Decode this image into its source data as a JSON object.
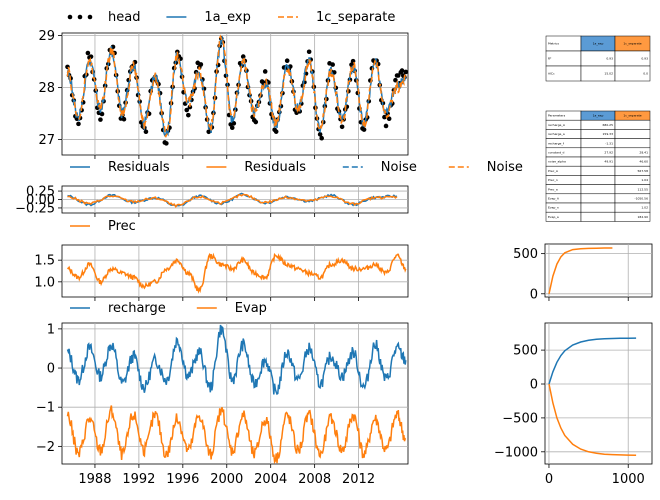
{
  "chart_data": [
    {
      "type": "line",
      "panel": "head",
      "ylim": [
        26.7,
        29.05
      ],
      "yticks": [
        "27",
        "28",
        "29"
      ],
      "xlim": [
        1985.0,
        2016.5
      ],
      "grid": true,
      "legend_position": "top",
      "series": [
        {
          "name": "head",
          "style": "dots",
          "color": "#000000",
          "x": [
            1985.5,
            1986.5,
            1987.5,
            1988.5,
            1989.5,
            1990.5,
            1991.5,
            1992.5,
            1993.5,
            1994.5,
            1995.5,
            1996.5,
            1997.5,
            1998.5,
            1999.5,
            2000.5,
            2001.5,
            2002.5,
            2003.5,
            2004.5,
            2005.5,
            2006.5,
            2007.5,
            2008.5,
            2009.5,
            2010.5,
            2011.5,
            2012.5,
            2013.5,
            2014.5,
            2015.5,
            2016.3
          ],
          "values": [
            28.4,
            27.3,
            28.6,
            27.5,
            28.8,
            27.4,
            28.5,
            27.2,
            28.3,
            27.0,
            28.7,
            27.6,
            28.4,
            27.1,
            28.9,
            27.3,
            28.6,
            27.4,
            28.2,
            27.2,
            28.5,
            27.5,
            28.6,
            27.1,
            28.4,
            27.3,
            28.5,
            27.2,
            28.6,
            27.4,
            28.1,
            28.3
          ]
        },
        {
          "name": "1a_exp",
          "style": "solid",
          "color": "#1f77b4",
          "x": [
            1985.5,
            1986.5,
            1987.5,
            1988.5,
            1989.5,
            1990.5,
            1991.5,
            1992.5,
            1993.5,
            1994.5,
            1995.5,
            1996.5,
            1997.5,
            1998.5,
            1999.5,
            2000.5,
            2001.5,
            2002.5,
            2003.5,
            2004.5,
            2005.5,
            2006.5,
            2007.5,
            2008.5,
            2009.5,
            2010.5,
            2011.5,
            2012.5,
            2013.5,
            2014.5,
            2015.5,
            2016.3
          ],
          "values": [
            28.3,
            27.4,
            28.5,
            27.6,
            28.7,
            27.5,
            28.4,
            27.3,
            28.2,
            27.1,
            28.6,
            27.7,
            28.3,
            27.2,
            28.9,
            27.4,
            28.5,
            27.5,
            28.1,
            27.3,
            28.4,
            27.6,
            28.5,
            27.2,
            28.3,
            27.4,
            28.4,
            27.3,
            28.5,
            27.5,
            28.0,
            28.2
          ]
        },
        {
          "name": "1c_separate",
          "style": "dashed",
          "color": "#ff7f0e",
          "x": [
            1985.5,
            1986.5,
            1987.5,
            1988.5,
            1989.5,
            1990.5,
            1991.5,
            1992.5,
            1993.5,
            1994.5,
            1995.5,
            1996.5,
            1997.5,
            1998.5,
            1999.5,
            2000.5,
            2001.5,
            2002.5,
            2003.5,
            2004.5,
            2005.5,
            2006.5,
            2007.5,
            2008.5,
            2009.5,
            2010.5,
            2011.5,
            2012.5,
            2013.5,
            2014.5,
            2015.5,
            2016.3
          ],
          "values": [
            28.3,
            27.4,
            28.5,
            27.6,
            28.7,
            27.5,
            28.4,
            27.3,
            28.2,
            27.1,
            28.6,
            27.7,
            28.3,
            27.2,
            29.0,
            27.4,
            28.5,
            27.5,
            28.1,
            27.3,
            28.4,
            27.6,
            28.5,
            27.2,
            28.3,
            27.4,
            28.4,
            27.3,
            28.5,
            27.5,
            28.0,
            28.2
          ]
        }
      ]
    },
    {
      "type": "line",
      "panel": "residuals",
      "ylim": [
        -0.4,
        0.4
      ],
      "yticks": [
        "0.25",
        "0.00",
        "−0.25"
      ],
      "xlim": [
        1985.0,
        2016.5
      ],
      "grid": true,
      "legend_position": "top",
      "series": [
        {
          "name": "Residuals",
          "style": "solid",
          "color": "#1f77b4",
          "x": [
            1985.5,
            1987.5,
            1989.5,
            1991.5,
            1993.5,
            1995.5,
            1997.5,
            1999.5,
            2001.5,
            2003.5,
            2005.5,
            2007.5,
            2009.5,
            2011.5,
            2013.5,
            2015.5
          ],
          "values": [
            0.1,
            -0.15,
            0.12,
            -0.08,
            0.05,
            -0.2,
            0.1,
            -0.12,
            0.15,
            -0.1,
            0.08,
            -0.05,
            0.12,
            -0.15,
            0.06,
            0.1
          ]
        },
        {
          "name": "Residuals",
          "style": "solid",
          "color": "#ff7f0e",
          "x": [
            1985.5,
            1987.5,
            1989.5,
            1991.5,
            1993.5,
            1995.5,
            1997.5,
            1999.5,
            2001.5,
            2003.5,
            2005.5,
            2007.5,
            2009.5,
            2011.5,
            2013.5,
            2015.5
          ],
          "values": [
            0.08,
            -0.12,
            0.1,
            -0.06,
            0.04,
            -0.18,
            0.08,
            -0.1,
            0.13,
            -0.08,
            0.06,
            -0.04,
            0.1,
            -0.13,
            0.05,
            0.08
          ]
        },
        {
          "name": "Noise",
          "style": "dashed",
          "color": "#1f77b4",
          "x": [],
          "values": []
        },
        {
          "name": "Noise",
          "style": "dashed",
          "color": "#ff7f0e",
          "x": [],
          "values": []
        }
      ]
    },
    {
      "type": "line",
      "panel": "prec",
      "ylim": [
        0.65,
        1.85
      ],
      "yticks": [
        "1.5",
        "1.0"
      ],
      "xlim": [
        1985.0,
        2016.5
      ],
      "grid": true,
      "legend_position": "top",
      "series": [
        {
          "name": "Prec",
          "style": "solid",
          "color": "#ff7f0e",
          "x": [
            1985.5,
            1986.5,
            1987.5,
            1988.5,
            1989.5,
            1990.5,
            1991.5,
            1992.5,
            1993.5,
            1994.5,
            1995.5,
            1996.5,
            1997.5,
            1998.5,
            1999.5,
            2000.5,
            2001.5,
            2002.5,
            2003.5,
            2004.5,
            2005.5,
            2006.5,
            2007.5,
            2008.5,
            2009.5,
            2010.5,
            2011.5,
            2012.5,
            2013.5,
            2014.5,
            2015.5,
            2016.3
          ],
          "values": [
            1.3,
            1.1,
            1.4,
            1.0,
            1.3,
            1.2,
            1.1,
            0.9,
            1.0,
            1.3,
            1.5,
            1.2,
            0.8,
            1.6,
            1.4,
            1.3,
            1.5,
            1.2,
            1.1,
            1.6,
            1.4,
            1.3,
            1.2,
            1.1,
            1.4,
            1.5,
            1.3,
            1.3,
            1.4,
            1.2,
            1.6,
            1.3
          ]
        }
      ]
    },
    {
      "type": "line",
      "panel": "stresses",
      "ylim": [
        -2.45,
        1.15
      ],
      "yticks": [
        "1",
        "0",
        "−1",
        "−2"
      ],
      "xticks": [
        "1988",
        "1992",
        "1996",
        "2000",
        "2004",
        "2008",
        "2012"
      ],
      "xlim": [
        1985.0,
        2016.5
      ],
      "grid": true,
      "legend_position": "top",
      "series": [
        {
          "name": "recharge",
          "style": "solid",
          "color": "#1f77b4",
          "x": [
            1985.5,
            1986.5,
            1987.5,
            1988.5,
            1989.5,
            1990.5,
            1991.5,
            1992.5,
            1993.5,
            1994.5,
            1995.5,
            1996.5,
            1997.5,
            1998.5,
            1999.5,
            2000.5,
            2001.5,
            2002.5,
            2003.5,
            2004.5,
            2005.5,
            2006.5,
            2007.5,
            2008.5,
            2009.5,
            2010.5,
            2011.5,
            2012.5,
            2013.5,
            2014.5,
            2015.5,
            2016.3
          ],
          "values": [
            0.4,
            -0.3,
            0.5,
            -0.2,
            0.6,
            -0.4,
            0.3,
            -0.5,
            0.2,
            -0.3,
            0.7,
            -0.2,
            0.4,
            -0.5,
            1.0,
            -0.3,
            0.6,
            -0.4,
            0.2,
            -0.6,
            0.4,
            -0.3,
            0.5,
            -0.4,
            0.3,
            -0.2,
            0.4,
            -0.5,
            0.6,
            -0.3,
            0.5,
            0.2
          ]
        },
        {
          "name": "Evap",
          "style": "solid",
          "color": "#ff7f0e",
          "x": [
            1985.5,
            1986.5,
            1987.5,
            1988.5,
            1989.5,
            1990.5,
            1991.5,
            1992.5,
            1993.5,
            1994.5,
            1995.5,
            1996.5,
            1997.5,
            1998.5,
            1999.5,
            2000.5,
            2001.5,
            2002.5,
            2003.5,
            2004.5,
            2005.5,
            2006.5,
            2007.5,
            2008.5,
            2009.5,
            2010.5,
            2011.5,
            2012.5,
            2013.5,
            2014.5,
            2015.5,
            2016.3
          ],
          "values": [
            -1.2,
            -2.2,
            -1.3,
            -2.1,
            -1.1,
            -2.2,
            -1.2,
            -2.1,
            -1.2,
            -2.2,
            -1.3,
            -2.1,
            -1.2,
            -2.2,
            -1.1,
            -2.1,
            -1.2,
            -2.2,
            -1.3,
            -2.3,
            -1.2,
            -2.1,
            -1.2,
            -2.2,
            -1.3,
            -2.1,
            -1.2,
            -2.2,
            -1.3,
            -2.1,
            -1.2,
            -1.8
          ]
        }
      ]
    },
    {
      "type": "line",
      "panel": "step_prec",
      "ylim": [
        -40,
        620
      ],
      "yticks": [
        "500",
        "0"
      ],
      "xlim": [
        -50,
        1300
      ],
      "grid": true,
      "series": [
        {
          "name": "",
          "style": "solid",
          "color": "#ff7f0e",
          "x": [
            0,
            50,
            100,
            150,
            200,
            300,
            400,
            500,
            600,
            700,
            800
          ],
          "values": [
            0,
            220,
            370,
            460,
            510,
            550,
            560,
            565,
            568,
            570,
            570
          ]
        }
      ]
    },
    {
      "type": "line",
      "panel": "step_stresses",
      "ylim": [
        -1180,
        900
      ],
      "yticks": [
        "500",
        "0",
        "−500",
        "−1000"
      ],
      "xticks": [
        "0",
        "1000"
      ],
      "xlim": [
        -50,
        1300
      ],
      "grid": true,
      "series": [
        {
          "name": "",
          "style": "solid",
          "color": "#1f77b4",
          "x": [
            0,
            50,
            100,
            150,
            200,
            300,
            400,
            500,
            600,
            700,
            800,
            900,
            1000,
            1100
          ],
          "values": [
            0,
            180,
            320,
            420,
            490,
            575,
            620,
            645,
            660,
            668,
            672,
            675,
            676,
            677
          ]
        },
        {
          "name": "",
          "style": "solid",
          "color": "#ff7f0e",
          "x": [
            0,
            50,
            100,
            150,
            200,
            300,
            400,
            500,
            600,
            700,
            800,
            900,
            1000,
            1100
          ],
          "values": [
            0,
            -280,
            -500,
            -650,
            -760,
            -890,
            -960,
            -1000,
            -1020,
            -1035,
            -1042,
            -1046,
            -1048,
            -1050
          ]
        }
      ]
    },
    {
      "type": "table",
      "panel": "metrics",
      "header": [
        "Metrics",
        "1a_exp",
        "1c_separate"
      ],
      "header_colors": [
        "#ffffff",
        "#5b9bd5",
        "#ff9940"
      ],
      "rows": [
        [
          "R²",
          "0.93",
          "0.93"
        ],
        [
          "AICc",
          "15.02",
          "0.0"
        ]
      ]
    },
    {
      "type": "table",
      "panel": "parameters",
      "header": [
        "Parameters",
        "1a_exp",
        "1c_separate"
      ],
      "header_colors": [
        "#ffffff",
        "#5b9bd5",
        "#ff9940"
      ],
      "rows": [
        [
          "recharge_A",
          "680.25",
          ""
        ],
        [
          "recharge_a",
          "159.33",
          ""
        ],
        [
          "recharge_f",
          "-1.31",
          ""
        ],
        [
          "constant_d",
          "27.92",
          "28.41"
        ],
        [
          "noise_alpha",
          "49.91",
          "46.60"
        ],
        [
          "Prec_A",
          "",
          "567.58"
        ],
        [
          "Prec_n",
          "",
          "1.04"
        ],
        [
          "Prec_a",
          "",
          "112.55"
        ],
        [
          "Evap_A",
          "",
          "-1050.56"
        ],
        [
          "Evap_n",
          "",
          "1.02"
        ],
        [
          "Evap_a",
          "",
          "182.90"
        ]
      ]
    }
  ]
}
